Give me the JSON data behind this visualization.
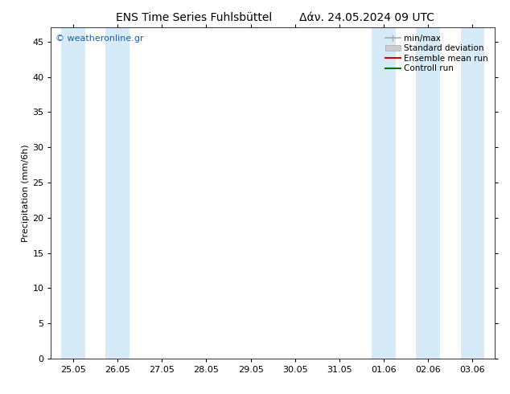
{
  "title_left": "ENS Time Series Fuhlsbüttel",
  "title_right": "Δάν. 24.05.2024 09 UTC",
  "ylabel": "Precipitation (mm/6h)",
  "yticks": [
    0,
    5,
    10,
    15,
    20,
    25,
    30,
    35,
    40,
    45
  ],
  "ylim": [
    0,
    47
  ],
  "xtick_labels": [
    "25.05",
    "26.05",
    "27.05",
    "28.05",
    "29.05",
    "30.05",
    "31.05",
    "01.06",
    "02.06",
    "03.06"
  ],
  "shaded_band_indices": [
    0,
    1,
    7,
    8,
    9
  ],
  "band_color": "#d6eaf8",
  "background_color": "#ffffff",
  "watermark": "© weatheronline.gr",
  "watermark_color": "#1a5fa8",
  "legend_entries": [
    {
      "label": "min/max",
      "color": "#aaaaaa",
      "style": "minmax"
    },
    {
      "label": "Standard deviation",
      "color": "#cccccc",
      "style": "bar"
    },
    {
      "label": "Ensemble mean run",
      "color": "#dd0000",
      "style": "line"
    },
    {
      "label": "Controll run",
      "color": "#007700",
      "style": "line"
    }
  ],
  "title_fontsize": 10,
  "ylabel_fontsize": 8,
  "tick_fontsize": 8,
  "legend_fontsize": 7.5,
  "watermark_fontsize": 8
}
